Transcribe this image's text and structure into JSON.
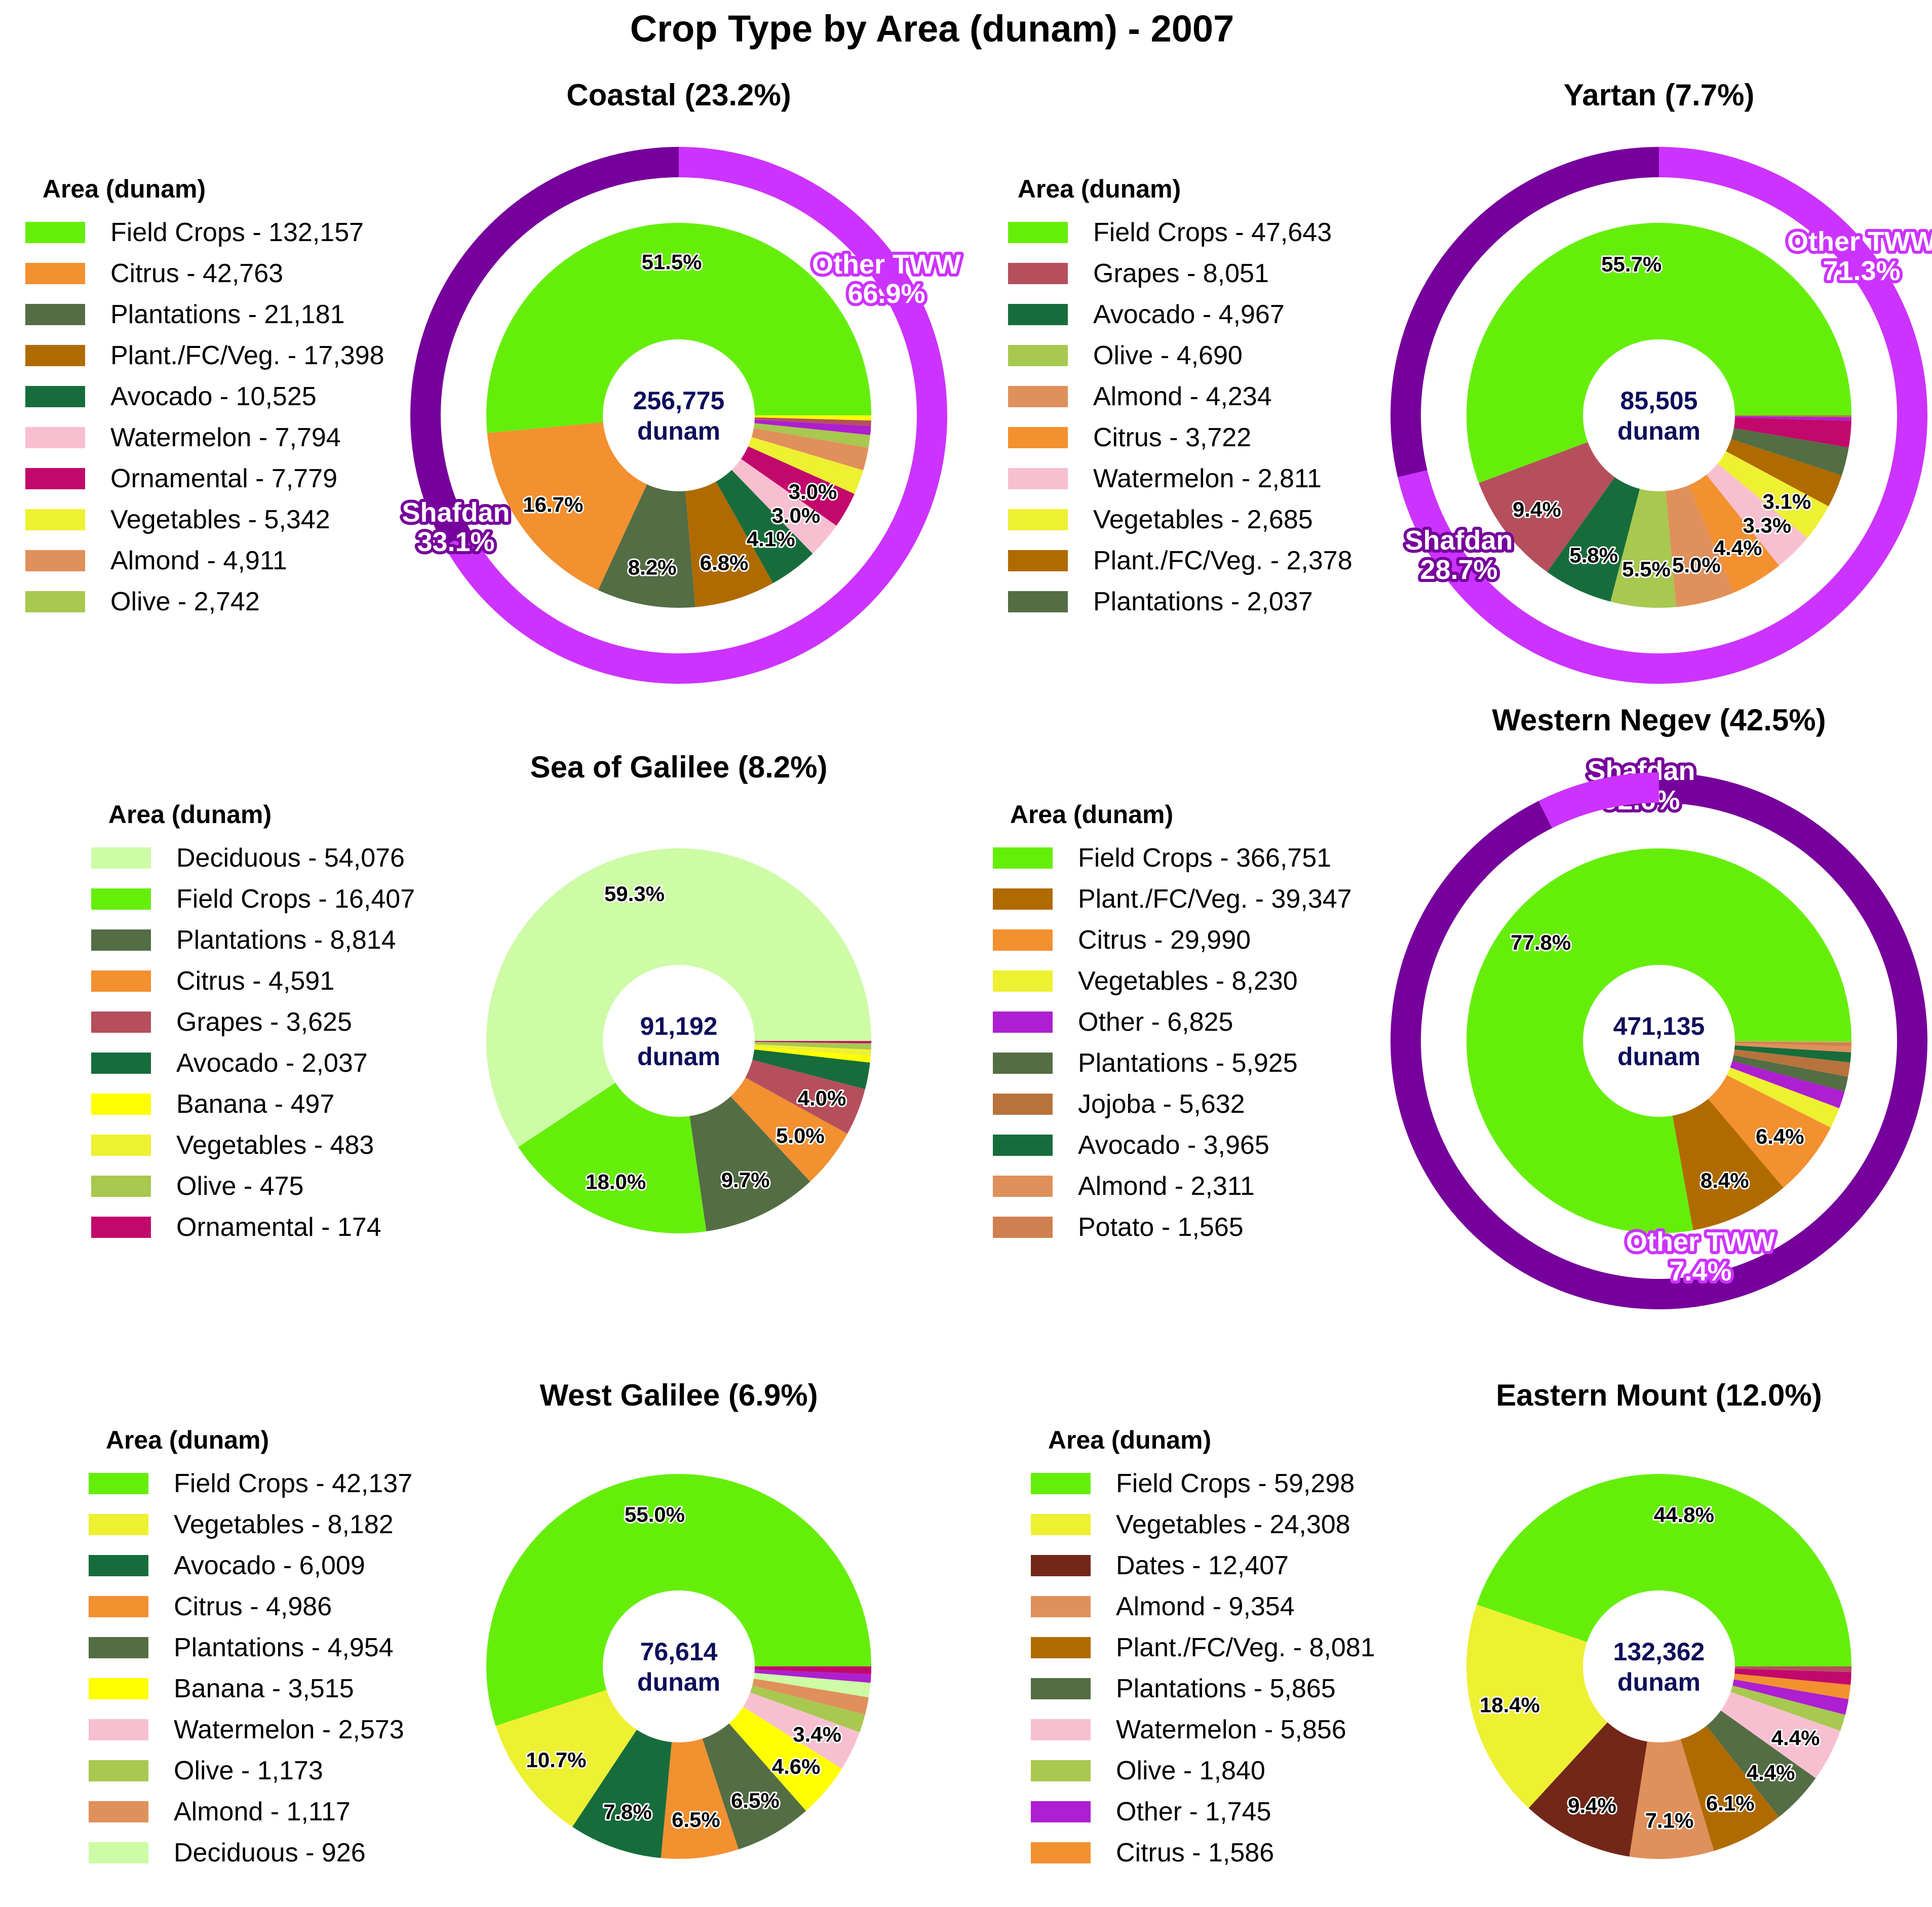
{
  "figure_title": "Crop Type by Area (dunam) - 2007",
  "colors": {
    "Field Crops": "#66ee0b",
    "Citrus": "#f39030",
    "Plantations": "#536d44",
    "Plant./FC/Veg.": "#b06b00",
    "Avocado": "#166d3b",
    "Watermelon": "#f8bfd0",
    "Ornamental": "#c2086b",
    "Vegetables": "#eef032",
    "Almond": "#e0905a",
    "Olive": "#a8c850",
    "Grapes": "#b54f5c",
    "Deciduous": "#cdfba6",
    "Banana": "#ffff00",
    "Other": "#ad1fd0",
    "Jojoba": "#b8733c",
    "Potato": "#d08050",
    "Dates": "#722719",
    "ring_shafdan": "#76009b",
    "ring_other_tww": "#cc33ff"
  },
  "chart_data": [
    {
      "type": "pie",
      "title": "Coastal (23.2%)",
      "legend_title": "Area (dunam)",
      "total_label": "256,775",
      "unit_label": "dunam",
      "slices": [
        {
          "name": "Field Crops",
          "value": 132157,
          "legend": "Field Crops - 132,157",
          "label": "51.5%"
        },
        {
          "name": "Citrus",
          "value": 42763,
          "legend": "Citrus - 42,763",
          "label": "16.7%"
        },
        {
          "name": "Plantations",
          "value": 21181,
          "legend": "Plantations - 21,181",
          "label": "8.2%"
        },
        {
          "name": "Plant./FC/Veg.",
          "value": 17398,
          "legend": "Plant./FC/Veg. - 17,398",
          "label": "6.8%"
        },
        {
          "name": "Avocado",
          "value": 10525,
          "legend": "Avocado - 10,525",
          "label": "4.1%"
        },
        {
          "name": "Watermelon",
          "value": 7794,
          "legend": "Watermelon - 7,794",
          "label": "3.0%"
        },
        {
          "name": "Ornamental",
          "value": 7779,
          "legend": "Ornamental - 7,779",
          "label": "3.0%"
        },
        {
          "name": "Vegetables",
          "value": 5342,
          "legend": "Vegetables - 5,342",
          "label": ""
        },
        {
          "name": "Almond",
          "value": 4911,
          "legend": "Almond - 4,911",
          "label": ""
        },
        {
          "name": "Olive",
          "value": 2742,
          "legend": "Olive - 2,742",
          "label": ""
        },
        {
          "name": "Other",
          "value": 1900,
          "legend": "",
          "label": ""
        },
        {
          "name": "Grapes",
          "value": 1200,
          "legend": "",
          "label": ""
        },
        {
          "name": "Banana",
          "value": 1083,
          "legend": "",
          "label": ""
        }
      ],
      "ring": [
        {
          "name": "Other TWW",
          "value": 66.9,
          "label": "Other TWW\n66.9%"
        },
        {
          "name": "Shafdan",
          "value": 33.1,
          "label": "Shafdan\n33.1%"
        }
      ]
    },
    {
      "type": "pie",
      "title": "Yartan (7.7%)",
      "legend_title": "Area (dunam)",
      "total_label": "85,505",
      "unit_label": "dunam",
      "slices": [
        {
          "name": "Field Crops",
          "value": 47643,
          "legend": "Field Crops - 47,643",
          "label": "55.7%"
        },
        {
          "name": "Grapes",
          "value": 8051,
          "legend": "Grapes - 8,051",
          "label": "9.4%"
        },
        {
          "name": "Avocado",
          "value": 4967,
          "legend": "Avocado - 4,967",
          "label": "5.8%"
        },
        {
          "name": "Olive",
          "value": 4690,
          "legend": "Olive - 4,690",
          "label": "5.5%"
        },
        {
          "name": "Almond",
          "value": 4234,
          "legend": "Almond - 4,234",
          "label": "5.0%"
        },
        {
          "name": "Citrus",
          "value": 3722,
          "legend": "Citrus - 3,722",
          "label": "4.4%"
        },
        {
          "name": "Watermelon",
          "value": 2811,
          "legend": "Watermelon - 2,811",
          "label": "3.3%"
        },
        {
          "name": "Vegetables",
          "value": 2685,
          "legend": "Vegetables - 2,685",
          "label": "3.1%"
        },
        {
          "name": "Plant./FC/Veg.",
          "value": 2378,
          "legend": "Plant./FC/Veg. - 2,378",
          "label": ""
        },
        {
          "name": "Plantations",
          "value": 2037,
          "legend": "Plantations - 2,037",
          "label": ""
        },
        {
          "name": "Ornamental",
          "value": 1900,
          "legend": "",
          "label": ""
        },
        {
          "name": "Other",
          "value": 250,
          "legend": "",
          "label": ""
        },
        {
          "name": "Jojoba",
          "value": 137,
          "legend": "",
          "label": ""
        }
      ],
      "ring": [
        {
          "name": "Other TWW",
          "value": 71.3,
          "label": "Other TWW\n71.3%"
        },
        {
          "name": "Shafdan",
          "value": 28.7,
          "label": "Shafdan\n28.7%"
        }
      ]
    },
    {
      "type": "pie",
      "title": "Sea of Galilee (8.2%)",
      "legend_title": "Area (dunam)",
      "total_label": "91,192",
      "unit_label": "dunam",
      "slices": [
        {
          "name": "Deciduous",
          "value": 54076,
          "legend": "Deciduous - 54,076",
          "label": "59.3%"
        },
        {
          "name": "Field Crops",
          "value": 16407,
          "legend": "Field Crops - 16,407",
          "label": "18.0%"
        },
        {
          "name": "Plantations",
          "value": 8814,
          "legend": "Plantations - 8,814",
          "label": "9.7%"
        },
        {
          "name": "Citrus",
          "value": 4591,
          "legend": "Citrus - 4,591",
          "label": "5.0%"
        },
        {
          "name": "Grapes",
          "value": 3625,
          "legend": "Grapes - 3,625",
          "label": "4.0%"
        },
        {
          "name": "Avocado",
          "value": 2037,
          "legend": "Avocado - 2,037",
          "label": ""
        },
        {
          "name": "Banana",
          "value": 497,
          "legend": "Banana - 497",
          "label": ""
        },
        {
          "name": "Vegetables",
          "value": 483,
          "legend": "Vegetables - 483",
          "label": ""
        },
        {
          "name": "Olive",
          "value": 475,
          "legend": "Olive - 475",
          "label": ""
        },
        {
          "name": "Ornamental",
          "value": 174,
          "legend": "Ornamental - 174",
          "label": ""
        },
        {
          "name": "Almond",
          "value": 13,
          "legend": "",
          "label": ""
        }
      ],
      "ring": []
    },
    {
      "type": "pie",
      "title": "Western Negev (42.5%)",
      "legend_title": "Area (dunam)",
      "total_label": "471,135",
      "unit_label": "dunam",
      "slices": [
        {
          "name": "Field Crops",
          "value": 366751,
          "legend": "Field Crops - 366,751",
          "label": "77.8%"
        },
        {
          "name": "Plant./FC/Veg.",
          "value": 39347,
          "legend": "Plant./FC/Veg. - 39,347",
          "label": "8.4%"
        },
        {
          "name": "Citrus",
          "value": 29990,
          "legend": "Citrus - 29,990",
          "label": "6.4%"
        },
        {
          "name": "Vegetables",
          "value": 8230,
          "legend": "Vegetables - 8,230",
          "label": ""
        },
        {
          "name": "Other",
          "value": 6825,
          "legend": "Other - 6,825",
          "label": ""
        },
        {
          "name": "Plantations",
          "value": 5925,
          "legend": "Plantations - 5,925",
          "label": ""
        },
        {
          "name": "Jojoba",
          "value": 5632,
          "legend": "Jojoba - 5,632",
          "label": ""
        },
        {
          "name": "Avocado",
          "value": 3965,
          "legend": "Avocado - 3,965",
          "label": ""
        },
        {
          "name": "Almond",
          "value": 2311,
          "legend": "Almond - 2,311",
          "label": ""
        },
        {
          "name": "Potato",
          "value": 1565,
          "legend": "Potato - 1,565",
          "label": ""
        },
        {
          "name": "Olive",
          "value": 594,
          "legend": "",
          "label": ""
        }
      ],
      "ring": [
        {
          "name": "Shafdan",
          "value": 92.6,
          "label": "Shafdan\n92.6%"
        },
        {
          "name": "Other TWW",
          "value": 7.4,
          "label": "Other TWW\n7.4%"
        }
      ]
    },
    {
      "type": "pie",
      "title": "West Galilee (6.9%)",
      "legend_title": "Area (dunam)",
      "total_label": "76,614",
      "unit_label": "dunam",
      "slices": [
        {
          "name": "Field Crops",
          "value": 42137,
          "legend": "Field Crops - 42,137",
          "label": "55.0%"
        },
        {
          "name": "Vegetables",
          "value": 8182,
          "legend": "Vegetables - 8,182",
          "label": "10.7%"
        },
        {
          "name": "Avocado",
          "value": 6009,
          "legend": "Avocado - 6,009",
          "label": "7.8%"
        },
        {
          "name": "Citrus",
          "value": 4986,
          "legend": "Citrus - 4,986",
          "label": "6.5%"
        },
        {
          "name": "Plantations",
          "value": 4954,
          "legend": "Plantations - 4,954",
          "label": "6.5%"
        },
        {
          "name": "Banana",
          "value": 3515,
          "legend": "Banana - 3,515",
          "label": "4.6%"
        },
        {
          "name": "Watermelon",
          "value": 2573,
          "legend": "Watermelon - 2,573",
          "label": "3.4%"
        },
        {
          "name": "Olive",
          "value": 1173,
          "legend": "Olive - 1,173",
          "label": ""
        },
        {
          "name": "Almond",
          "value": 1117,
          "legend": "Almond - 1,117",
          "label": ""
        },
        {
          "name": "Deciduous",
          "value": 926,
          "legend": "Deciduous - 926",
          "label": ""
        },
        {
          "name": "Other",
          "value": 550,
          "legend": "",
          "label": ""
        },
        {
          "name": "Ornamental",
          "value": 492,
          "legend": "",
          "label": ""
        }
      ],
      "ring": []
    },
    {
      "type": "pie",
      "title": "Eastern Mount (12.0%)",
      "legend_title": "Area (dunam)",
      "total_label": "132,362",
      "unit_label": "dunam",
      "slices": [
        {
          "name": "Field Crops",
          "value": 59298,
          "legend": "Field Crops - 59,298",
          "label": "44.8%"
        },
        {
          "name": "Vegetables",
          "value": 24308,
          "legend": "Vegetables - 24,308",
          "label": "18.4%"
        },
        {
          "name": "Dates",
          "value": 12407,
          "legend": "Dates - 12,407",
          "label": "9.4%"
        },
        {
          "name": "Almond",
          "value": 9354,
          "legend": "Almond - 9,354",
          "label": "7.1%"
        },
        {
          "name": "Plant./FC/Veg.",
          "value": 8081,
          "legend": "Plant./FC/Veg. - 8,081",
          "label": "6.1%"
        },
        {
          "name": "Plantations",
          "value": 5865,
          "legend": "Plantations - 5,865",
          "label": "4.4%"
        },
        {
          "name": "Watermelon",
          "value": 5856,
          "legend": "Watermelon - 5,856",
          "label": "4.4%"
        },
        {
          "name": "Olive",
          "value": 1840,
          "legend": "Olive - 1,840",
          "label": ""
        },
        {
          "name": "Other",
          "value": 1745,
          "legend": "Other - 1,745",
          "label": ""
        },
        {
          "name": "Citrus",
          "value": 1586,
          "legend": "Citrus - 1,586",
          "label": ""
        },
        {
          "name": "Ornamental",
          "value": 1400,
          "legend": "",
          "label": ""
        },
        {
          "name": "Grapes",
          "value": 622,
          "legend": "",
          "label": ""
        }
      ],
      "ring": []
    }
  ]
}
